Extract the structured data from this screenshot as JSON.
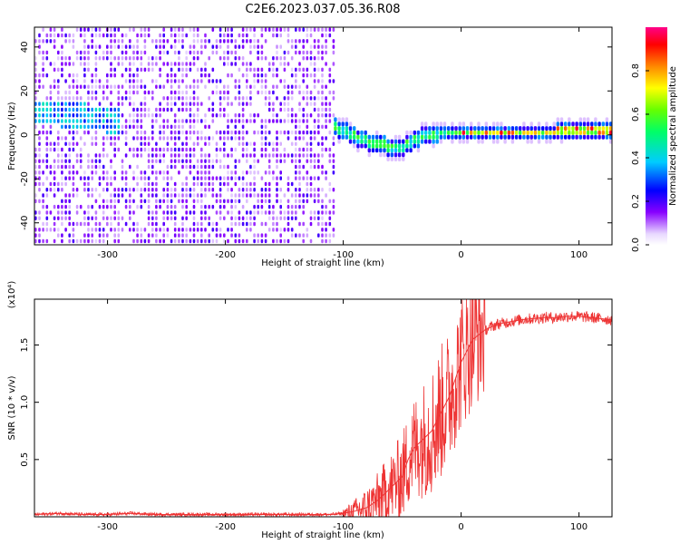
{
  "title": "C2E6.2023.037.05.36.R08",
  "chart_data": [
    {
      "type": "heatmap",
      "xlabel": "Height of straight line (km)",
      "ylabel": "Frequency (Hz)",
      "xlim": [
        -362,
        128
      ],
      "ylim": [
        -50,
        49
      ],
      "x_ticks": [
        -300,
        -200,
        -100,
        0,
        100
      ],
      "y_ticks": [
        -40,
        -20,
        0,
        20,
        40
      ],
      "colorbar": {
        "label": "Normalized spectral amplitude",
        "range": [
          0,
          1
        ],
        "ticks": [
          "0.0",
          "0.2",
          "0.4",
          "0.6",
          "0.8"
        ]
      },
      "ridge": {
        "x": [
          -352,
          -330,
          -310,
          -290,
          -105,
          -95,
          -80,
          -65,
          -50,
          -40,
          -30,
          -20,
          -10,
          0,
          20,
          50,
          80,
          100,
          128
        ],
        "y": [
          9,
          7,
          6,
          4,
          2,
          -1,
          -4,
          -6,
          -7,
          -3,
          -1,
          0,
          0,
          0,
          0,
          0,
          0,
          1,
          0
        ]
      }
    },
    {
      "type": "line",
      "xlabel": "Height of straight line (km)",
      "ylabel": "SNR (10 * v/v)",
      "y_multiplier": "(x10⁴)",
      "xlim": [
        -362,
        128
      ],
      "ylim": [
        0,
        19000
      ],
      "x_ticks": [
        -300,
        -200,
        -100,
        0,
        100
      ],
      "y_ticks": [
        5000,
        10000,
        15000
      ],
      "y_tick_labels": [
        "0.5",
        "1.0",
        "1.5"
      ],
      "series": [
        {
          "color": "#ee3333",
          "x": [
            -362,
            -340,
            -320,
            -300,
            -280,
            -260,
            -240,
            -220,
            -200,
            -180,
            -160,
            -140,
            -120,
            -110,
            -100,
            -90,
            -80,
            -70,
            -60,
            -50,
            -45,
            -40,
            -35,
            -30,
            -25,
            -20,
            -15,
            -10,
            -5,
            0,
            5,
            10,
            20,
            30,
            40,
            50,
            60,
            70,
            80,
            90,
            100,
            110,
            128
          ],
          "y": [
            200,
            300,
            200,
            200,
            300,
            200,
            200,
            200,
            200,
            200,
            200,
            200,
            200,
            200,
            300,
            500,
            800,
            1500,
            2500,
            3500,
            5000,
            6000,
            6500,
            7000,
            7500,
            8500,
            9500,
            10500,
            12000,
            13500,
            14500,
            15500,
            16300,
            16800,
            17000,
            17200,
            17300,
            17400,
            17400,
            17500,
            17500,
            17400,
            17200
          ]
        }
      ]
    }
  ]
}
